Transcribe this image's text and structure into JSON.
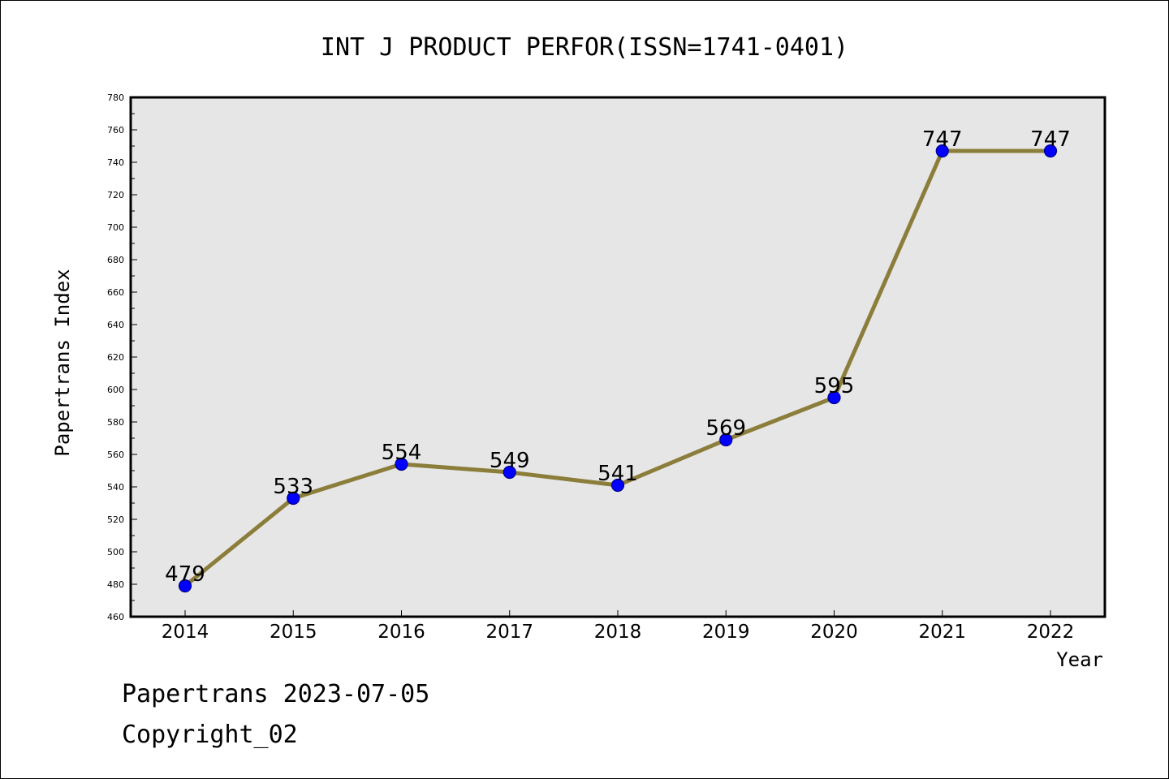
{
  "chart_data": {
    "type": "line",
    "title": "INT J PRODUCT PERFOR(ISSN=1741-0401)",
    "xlabel": "Year",
    "ylabel": "Papertrans Index",
    "categories": [
      "2014",
      "2015",
      "2016",
      "2017",
      "2018",
      "2019",
      "2020",
      "2021",
      "2022"
    ],
    "series": [
      {
        "values": [
          479,
          533,
          554,
          549,
          541,
          569,
          595,
          747,
          747
        ]
      }
    ],
    "ylim": [
      460,
      780
    ],
    "yticks": [
      460,
      480,
      500,
      520,
      540,
      560,
      580,
      600,
      620,
      640,
      660,
      680,
      700,
      720,
      740,
      760,
      780
    ],
    "grid": false,
    "legend": "none",
    "colors": {
      "line": "#8B7D3A",
      "marker": "#0000FF",
      "marker_edge": "#00008B",
      "plot_background": "#E6E6E6"
    }
  },
  "footer": {
    "line1": "Papertrans 2023-07-05",
    "line2": "Copyright_02"
  }
}
